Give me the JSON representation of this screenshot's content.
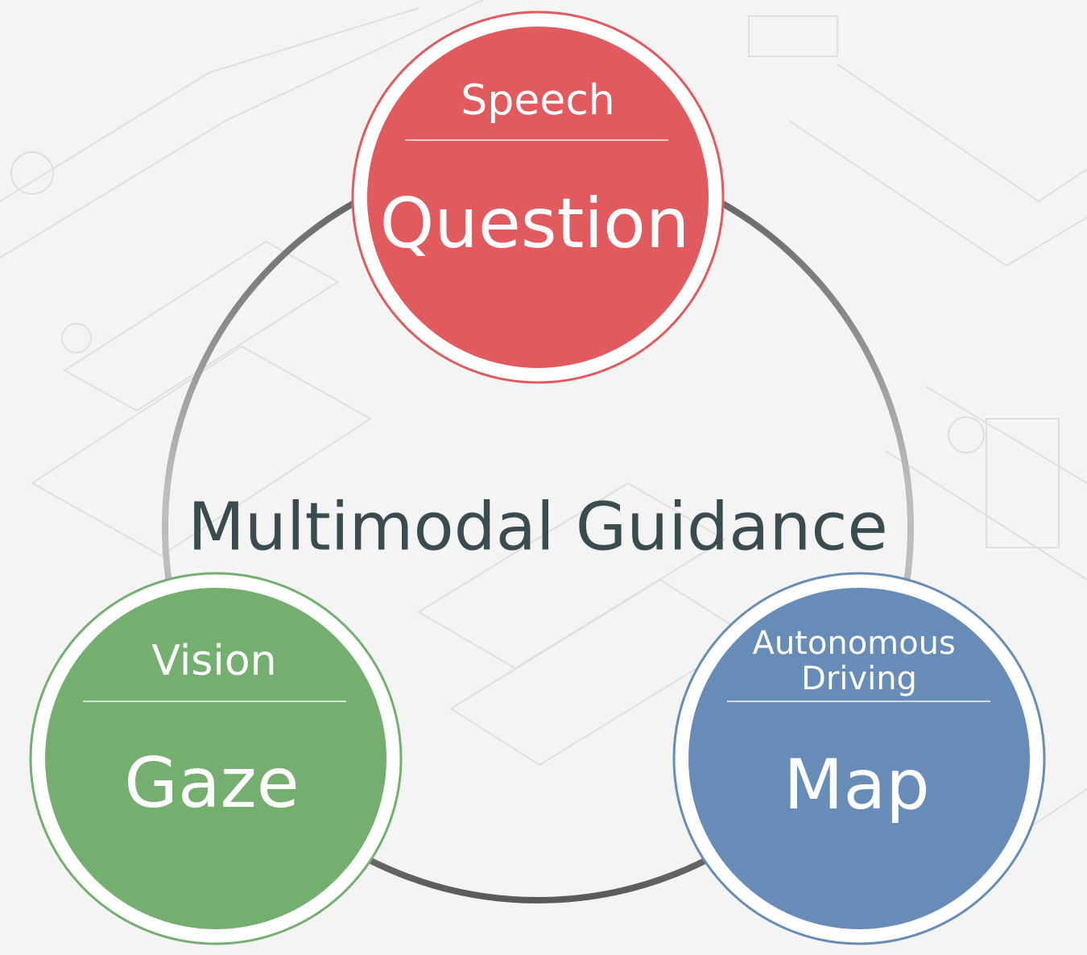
{
  "diagram": {
    "center_label": "Multimodal Guidance",
    "nodes": [
      {
        "id": "speech",
        "category": "Speech",
        "category_lines": [
          "Speech"
        ],
        "label": "Question",
        "fill_color": "#e05a5e",
        "ring_color": "#e05a5e"
      },
      {
        "id": "vision",
        "category": "Vision",
        "category_lines": [
          "Vision"
        ],
        "label": "Gaze",
        "fill_color": "#74af70",
        "ring_color": "#74af70"
      },
      {
        "id": "autonomous-driving",
        "category": "Autonomous Driving",
        "category_lines": [
          "Autonomous",
          "Driving"
        ],
        "label": "Map",
        "fill_color": "#688cb8",
        "ring_color": "#688cb8"
      }
    ],
    "connector_colors": {
      "dark": "#5a5a5a",
      "light": "#bdbdbd"
    },
    "background_color": "#f4f4f4"
  }
}
